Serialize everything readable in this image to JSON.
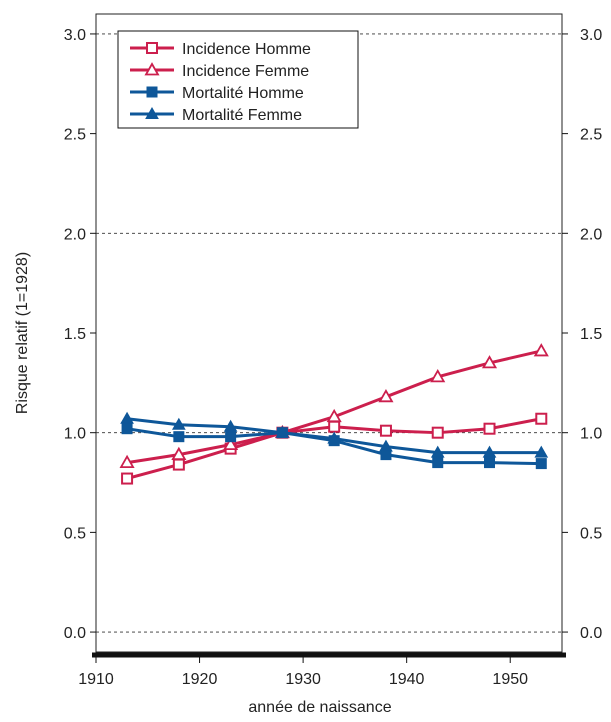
{
  "chart_data": {
    "type": "line",
    "title": "",
    "xlabel": "année de naissance",
    "ylabel": "Risque relatif (1=1928)",
    "x": [
      1913,
      1918,
      1923,
      1928,
      1933,
      1938,
      1943,
      1948,
      1953
    ],
    "xlim": [
      1910,
      1955
    ],
    "ylim": [
      -0.1,
      3.1
    ],
    "x_ticks": [
      1910,
      1920,
      1930,
      1940,
      1950
    ],
    "y_ticks": [
      0.0,
      0.5,
      1.0,
      1.5,
      2.0,
      2.5,
      3.0
    ],
    "y_tick_labels": [
      "0.0",
      "0.5",
      "1.0",
      "1.5",
      "2.0",
      "2.5",
      "3.0"
    ],
    "gridlines": "horizontal dashed at 0.0, 1.0, 2.0, 3.0",
    "right_axis": "duplicate of left axis",
    "legend_position": "top-left",
    "series": [
      {
        "name": "Incidence Homme",
        "color": "#cc1f4d",
        "marker": "open-square",
        "values": [
          0.77,
          0.84,
          0.92,
          1.0,
          1.03,
          1.01,
          1.0,
          1.02,
          1.07
        ]
      },
      {
        "name": "Incidence Femme",
        "color": "#cc1f4d",
        "marker": "open-triangle",
        "values": [
          0.85,
          0.89,
          0.94,
          1.0,
          1.08,
          1.18,
          1.28,
          1.35,
          1.41
        ]
      },
      {
        "name": "Mortalité Homme",
        "color": "#0e5799",
        "marker": "filled-square",
        "values": [
          1.02,
          0.98,
          0.98,
          1.0,
          0.96,
          0.89,
          0.85,
          0.85,
          0.845
        ]
      },
      {
        "name": "Mortalité Femme",
        "color": "#0e5799",
        "marker": "filled-triangle",
        "values": [
          1.07,
          1.04,
          1.03,
          1.0,
          0.97,
          0.93,
          0.9,
          0.9,
          0.9
        ]
      }
    ]
  }
}
